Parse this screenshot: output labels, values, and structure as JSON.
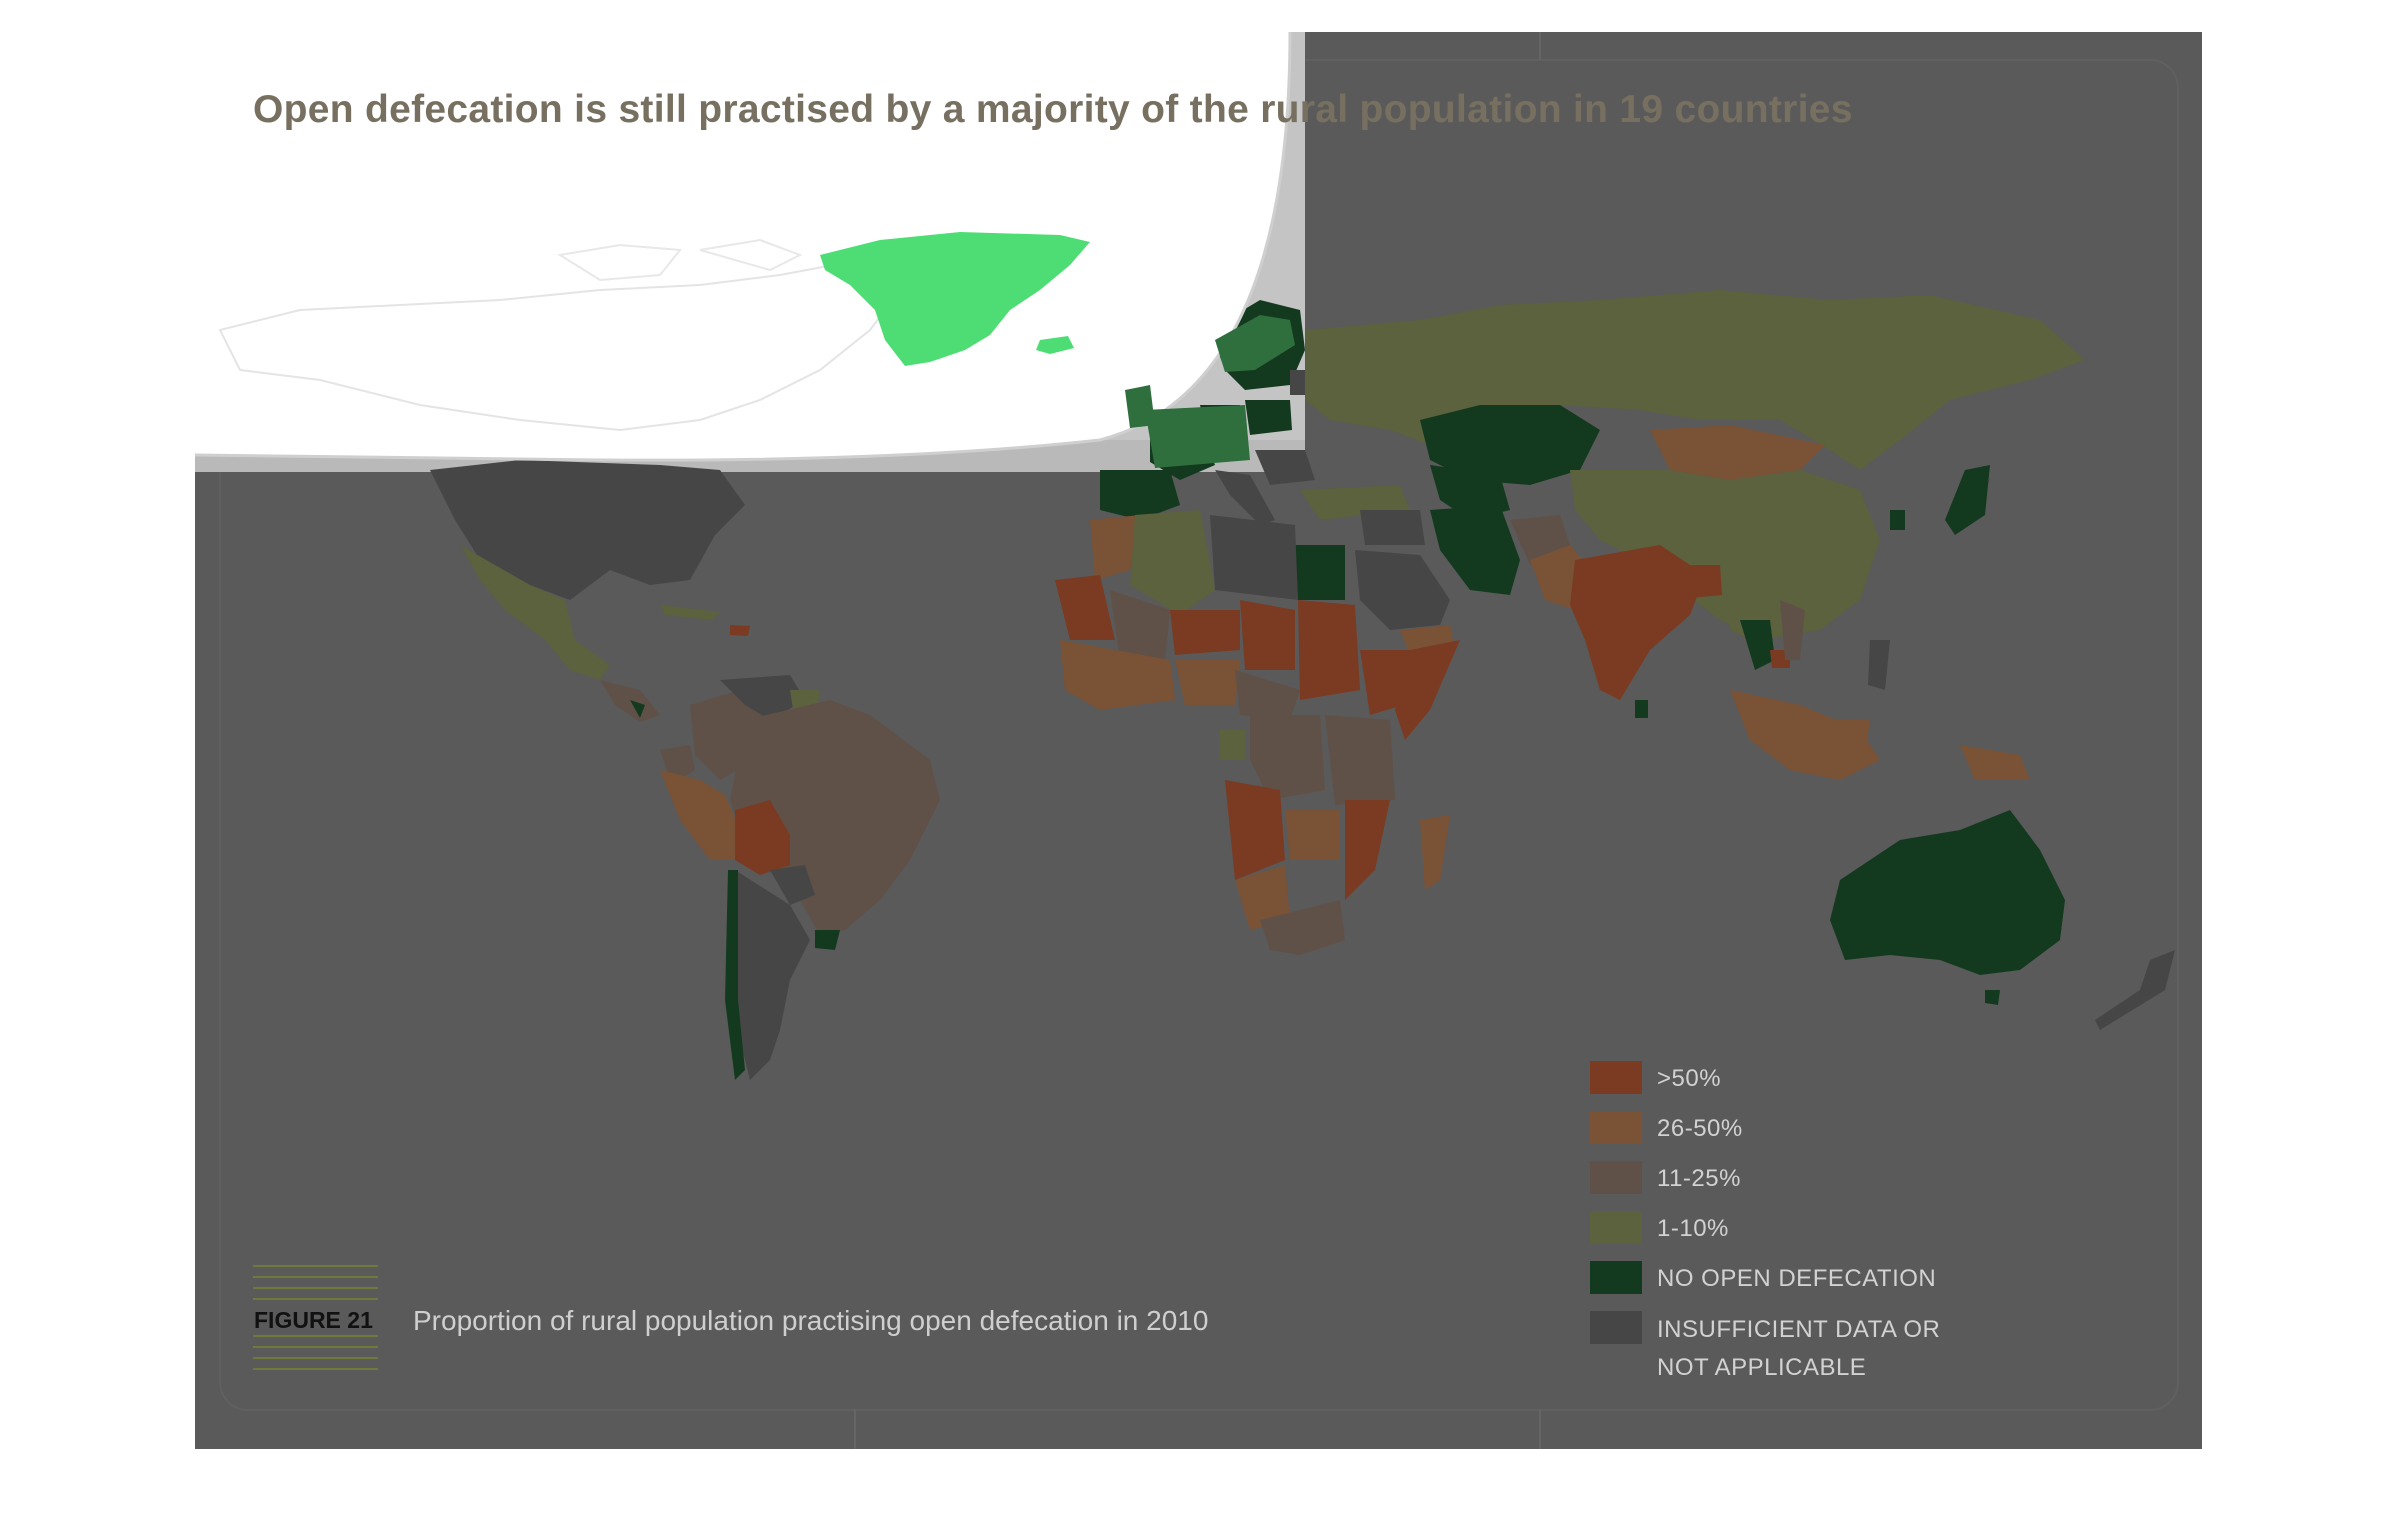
{
  "title": "Open defecation is still practised by a majority of the rural population in 19 countries",
  "figure": {
    "label": "FIGURE 21",
    "caption": "Proportion of rural population practising open defecation in 2010"
  },
  "legend": {
    "items": [
      {
        "label": ">50%",
        "color": "#7a3b22"
      },
      {
        "label": "26-50%",
        "color": "#7a5236"
      },
      {
        "label": "11-25%",
        "color": "#5f5148"
      },
      {
        "label": "1-10%",
        "color": "#5c613e"
      },
      {
        "label": "NO OPEN DEFECATION",
        "color": "#13391e"
      },
      {
        "label": "INSUFFICIENT DATA OR",
        "label2": "NOT APPLICABLE",
        "color": "#464646"
      }
    ]
  },
  "colors": {
    "page_background": "#ffffff",
    "map_overlay": "#5a5a5a",
    "ocean": "#585858",
    "highlight_green": "#4ddd74"
  }
}
